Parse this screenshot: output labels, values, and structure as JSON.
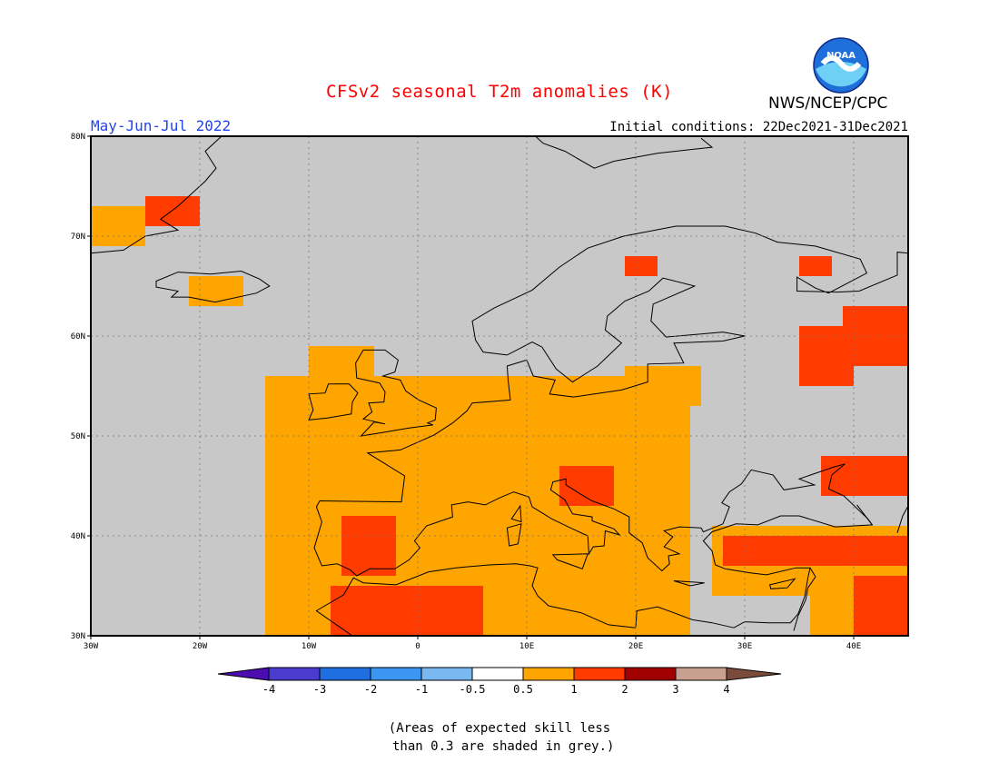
{
  "header": {
    "title": "CFSv2 seasonal T2m anomalies (K)",
    "organization": "NWS/NCEP/CPC",
    "logo_text": "NOAA",
    "period": "May-Jun-Jul 2022",
    "initial_conditions": "Initial conditions: 22Dec2021-31Dec2021"
  },
  "axes": {
    "lon_min": -30,
    "lon_max": 45,
    "lat_min": 30,
    "lat_max": 80,
    "lon_ticks": [
      {
        "value": -30,
        "label": "30W"
      },
      {
        "value": -20,
        "label": "20W"
      },
      {
        "value": -10,
        "label": "10W"
      },
      {
        "value": 0,
        "label": "0"
      },
      {
        "value": 10,
        "label": "10E"
      },
      {
        "value": 20,
        "label": "20E"
      },
      {
        "value": 30,
        "label": "30E"
      },
      {
        "value": 40,
        "label": "40E"
      }
    ],
    "lat_ticks": [
      {
        "value": 30,
        "label": "30N"
      },
      {
        "value": 40,
        "label": "40N"
      },
      {
        "value": 50,
        "label": "50N"
      },
      {
        "value": 60,
        "label": "60N"
      },
      {
        "value": 70,
        "label": "70N"
      },
      {
        "value": 80,
        "label": "80N"
      }
    ]
  },
  "colors": {
    "ocean_land_grey": "#c8c8c8",
    "near_zero": "#ffffff",
    "warm_0_5_to_1": "#ffa500",
    "warm_1_to_2": "#ff3b00",
    "warm_2_to_3": "#a00000",
    "warm_3_to_4": "#c8a090",
    "gt_4": "#7a4a3a",
    "lt_minus4": "#4a0ca0"
  },
  "colorbar": {
    "labels": [
      "-4",
      "-3",
      "-2",
      "-1",
      "-0.5",
      "0.5",
      "1",
      "2",
      "3",
      "4"
    ],
    "colors": [
      "#4b0cb0",
      "#4a3ccc",
      "#1f6ee0",
      "#3a96f0",
      "#7ab8f2",
      "#ffffff",
      "#ffa500",
      "#ff3b00",
      "#a00000",
      "#c8a090",
      "#7a4a3a"
    ]
  },
  "anomaly_regions": [
    {
      "category": "warm_0_5_to_1",
      "lon": [
        -14,
        25
      ],
      "lat": [
        30,
        56
      ]
    },
    {
      "category": "warm_1_to_2",
      "lon": [
        -7,
        -2
      ],
      "lat": [
        36,
        42
      ]
    },
    {
      "category": "warm_1_to_2",
      "lon": [
        -8,
        6
      ],
      "lat": [
        30,
        35
      ]
    },
    {
      "category": "warm_1_to_2",
      "lon": [
        13,
        18
      ],
      "lat": [
        43,
        47
      ]
    },
    {
      "category": "warm_0_5_to_1",
      "lon": [
        27,
        45
      ],
      "lat": [
        34,
        41
      ]
    },
    {
      "category": "warm_1_to_2",
      "lon": [
        28,
        45
      ],
      "lat": [
        37,
        40
      ]
    },
    {
      "category": "warm_1_to_2",
      "lon": [
        37,
        45
      ],
      "lat": [
        44,
        48
      ]
    },
    {
      "category": "warm_1_to_2",
      "lon": [
        35,
        40
      ],
      "lat": [
        55,
        61
      ]
    },
    {
      "category": "warm_1_to_2",
      "lon": [
        39,
        45
      ],
      "lat": [
        57,
        63
      ]
    },
    {
      "category": "warm_0_5_to_1",
      "lon": [
        36,
        45
      ],
      "lat": [
        30,
        36
      ]
    },
    {
      "category": "warm_1_to_2",
      "lon": [
        40,
        45
      ],
      "lat": [
        30,
        36
      ]
    },
    {
      "category": "warm_0_5_to_1",
      "lon": [
        -21,
        -16
      ],
      "lat": [
        63,
        66
      ]
    },
    {
      "category": "warm_1_to_2",
      "lon": [
        -25,
        -20
      ],
      "lat": [
        71,
        74
      ]
    },
    {
      "category": "warm_0_5_to_1",
      "lon": [
        -30,
        -25
      ],
      "lat": [
        69,
        73
      ]
    },
    {
      "category": "warm_0_5_to_1",
      "lon": [
        19,
        26
      ],
      "lat": [
        53,
        57
      ]
    },
    {
      "category": "warm_1_to_2",
      "lon": [
        19,
        22
      ],
      "lat": [
        66,
        68
      ]
    },
    {
      "category": "warm_1_to_2",
      "lon": [
        35,
        38
      ],
      "lat": [
        66,
        68
      ]
    },
    {
      "category": "warm_0_5_to_1",
      "lon": [
        -10,
        -4
      ],
      "lat": [
        56,
        59
      ]
    }
  ],
  "note": {
    "line1": "(Areas of expected skill less",
    "line2": " than 0.3 are shaded in grey.)"
  }
}
